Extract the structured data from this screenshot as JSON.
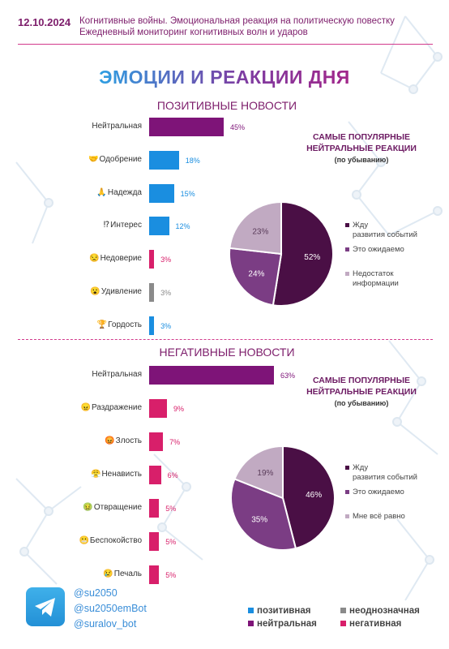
{
  "header": {
    "date": "12.10.2024",
    "line1": "Когнитивные войны. Эмоциональная реакция на политическую повестку",
    "line2": "Ежедневный мониторинг когнитивных волн и ударов"
  },
  "title": "ЭМОЦИИ И РЕАКЦИИ ДНЯ",
  "colors": {
    "positive": "#1a8ee0",
    "neutral": "#7e1478",
    "ambiguous": "#8a8a8a",
    "negative": "#d81f6a",
    "pie1": "#4a0f45",
    "pie2": "#7b3d84",
    "pie3": "#c1aac2"
  },
  "chart_data": [
    {
      "type": "bar",
      "title": "ПОЗИТИВНЫЕ НОВОСТИ",
      "categories": [
        "Нейтральная",
        "Одобрение",
        "Надежда",
        "Интерес",
        "Недоверие",
        "Удивление",
        "Гордость"
      ],
      "values": [
        45,
        18,
        15,
        12,
        3,
        3,
        3
      ],
      "labels": [
        "45%",
        "18%",
        "15%",
        "12%",
        "3%",
        "3%",
        "3%"
      ],
      "kinds": [
        "neutral",
        "positive",
        "positive",
        "positive",
        "negative",
        "ambiguous",
        "positive"
      ],
      "icons": [
        "",
        "🤝",
        "🙏",
        "⁉",
        "😒",
        "😮",
        "🏆"
      ]
    },
    {
      "type": "pie",
      "title": "САМЫЕ ПОПУЛЯРНЫЕ НЕЙТРАЛЬНЫЕ РЕАКЦИИ",
      "subtitle": "(по убыванию)",
      "categories": [
        "Жду развития событий",
        "Это ожидаемо",
        "Недостаток информации"
      ],
      "values": [
        52,
        24,
        23
      ],
      "labels": [
        "52%",
        "24%",
        "23%"
      ],
      "legend": "right"
    },
    {
      "type": "bar",
      "title": "НЕГАТИВНЫЕ НОВОСТИ",
      "categories": [
        "Нейтральная",
        "Раздражение",
        "Злость",
        "Ненависть",
        "Отвращение",
        "Беспокойство",
        "Печаль"
      ],
      "values": [
        63,
        9,
        7,
        6,
        5,
        5,
        5
      ],
      "labels": [
        "63%",
        "9%",
        "7%",
        "6%",
        "5%",
        "5%",
        "5%"
      ],
      "kinds": [
        "neutral",
        "negative",
        "negative",
        "negative",
        "negative",
        "negative",
        "negative"
      ],
      "icons": [
        "",
        "😠",
        "😡",
        "😤",
        "🤢",
        "😬",
        "😢"
      ]
    },
    {
      "type": "pie",
      "title": "САМЫЕ ПОПУЛЯРНЫЕ НЕЙТРАЛЬНЫЕ РЕАКЦИИ",
      "subtitle": "(по убыванию)",
      "categories": [
        "Жду развития событий",
        "Это ожидаемо",
        "Мне всё равно"
      ],
      "values": [
        46,
        35,
        19
      ],
      "labels": [
        "46%",
        "35%",
        "19%"
      ],
      "legend": "right"
    }
  ],
  "footer": {
    "handles": [
      "@su2050",
      "@su2050emBot",
      "@suralov_bot"
    ],
    "legend": [
      "позитивная",
      "неоднозначная",
      "нейтральная",
      "негативная"
    ]
  }
}
